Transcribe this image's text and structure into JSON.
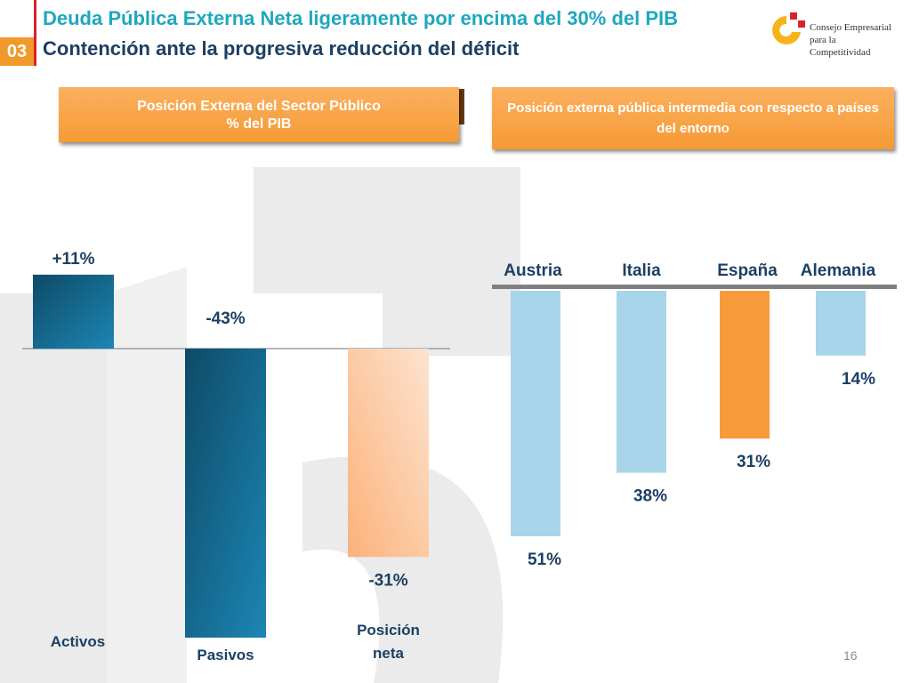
{
  "header": {
    "title": "Deuda Pública Externa Neta ligeramente por encima del 30% del PIB",
    "subtitle": "Contención ante la progresiva reducción del déficit",
    "section_number": "03"
  },
  "organization": {
    "name_line1": "Consejo Empresarial",
    "name_line2": "para la",
    "name_line3": "Competitividad"
  },
  "colors": {
    "title": "#1fa7c0",
    "subtitle": "#1c3f63",
    "accent_orange": "#f59a34",
    "dark_blue_bar": "#1a6f97",
    "light_blue_bar": "#a9d5ea",
    "highlight_bar": "#f99a3a"
  },
  "page_number": "16",
  "chart_data": [
    {
      "type": "bar",
      "title_line1": "Posición Externa del Sector Público",
      "title_line2": "% del PIB",
      "categories": [
        "Activos",
        "Pasivos",
        "Posición neta"
      ],
      "category_labels": [
        [
          "Activos"
        ],
        [
          "Pasivos"
        ],
        [
          "Posición",
          "neta"
        ]
      ],
      "values": [
        11,
        -43,
        -31
      ],
      "data_labels": [
        "+11%",
        "-43%",
        "-31%"
      ],
      "bar_styles": [
        "dark-blue",
        "dark-blue",
        "light-orange"
      ],
      "ylim": [
        -50,
        15
      ],
      "grid": false
    },
    {
      "type": "bar",
      "title": "Posición externa pública intermedia con respecto a países del entorno",
      "categories": [
        "Austria",
        "Italia",
        "España",
        "Alemania"
      ],
      "values": [
        51,
        38,
        31,
        14
      ],
      "data_labels": [
        "51%",
        "38%",
        "31%",
        "14%"
      ],
      "highlight": "España",
      "orientation": "downward from baseline",
      "grid": false
    }
  ]
}
